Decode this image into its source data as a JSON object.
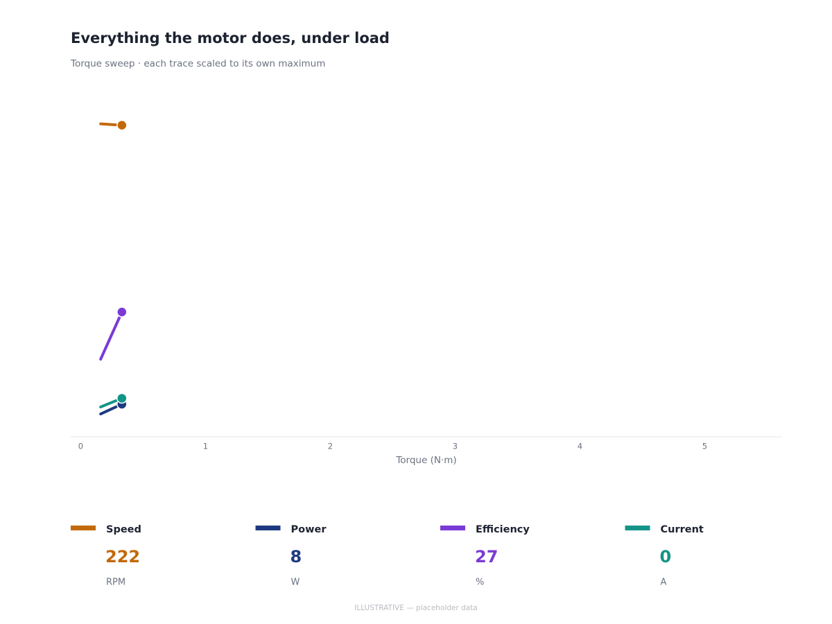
{
  "chart_data": {
    "type": "line",
    "title": "Everything the motor does, under load",
    "subtitle": "Torque sweep · each trace scaled to its own maximum",
    "x_label": "Torque (N·m)",
    "xlim": [
      -0.08,
      5.62
    ],
    "xticks": [
      0,
      1,
      2,
      3,
      4,
      5
    ],
    "x": [
      0.16,
      0.33
    ],
    "series": [
      {
        "name": "Speed",
        "color": "#c2690a",
        "values": [
          223,
          222
        ],
        "ylim": [
          0,
          247
        ],
        "current": 222,
        "unit": "RPM"
      },
      {
        "name": "Power",
        "color": "#1f3a80",
        "values": [
          5.6,
          8
        ],
        "ylim": [
          0,
          85
        ],
        "current": 8,
        "unit": "W"
      },
      {
        "name": "Efficiency",
        "color": "#7b3ad6",
        "values": [
          16.8,
          27
        ],
        "ylim": [
          0,
          75
        ],
        "current": 27,
        "unit": "%"
      },
      {
        "name": "Current",
        "color": "#139488",
        "values": [
          0.31,
          0.4
        ],
        "ylim": [
          0,
          3.6
        ],
        "current": 0,
        "unit": "A"
      }
    ]
  },
  "footer": "ILLUSTRATIVE — placeholder data"
}
